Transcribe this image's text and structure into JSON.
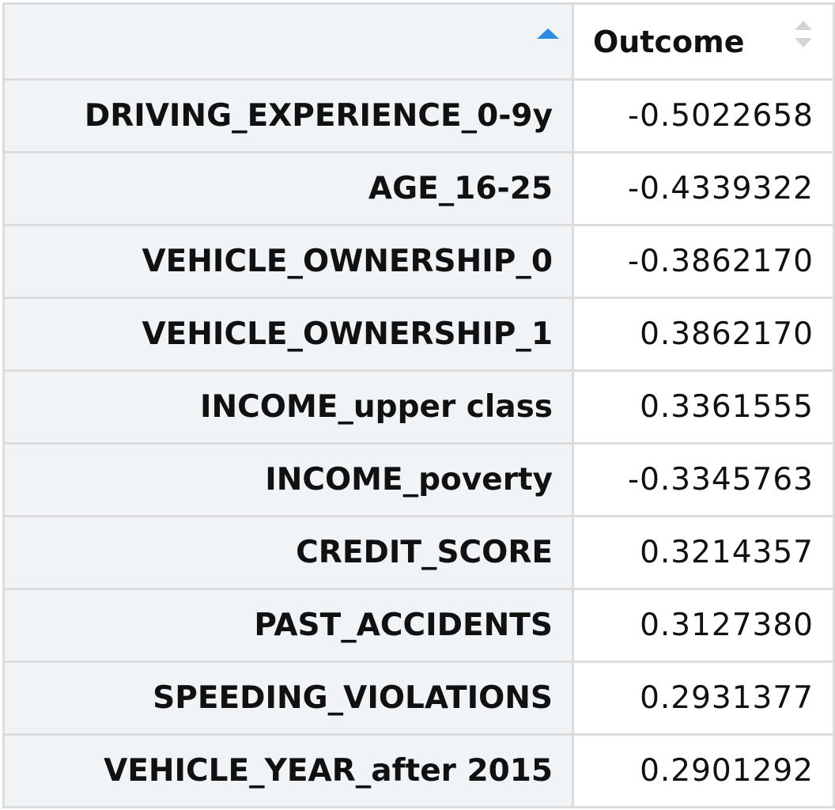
{
  "table": {
    "headers": {
      "rowname": "",
      "outcome": "Outcome"
    },
    "sort_indicator_color": "#2e8ae0",
    "rows": [
      {
        "name": "DRIVING_EXPERIENCE_0-9y",
        "value": "-0.5022658"
      },
      {
        "name": "AGE_16-25",
        "value": "-0.4339322"
      },
      {
        "name": "VEHICLE_OWNERSHIP_0",
        "value": "-0.3862170"
      },
      {
        "name": "VEHICLE_OWNERSHIP_1",
        "value": "0.3862170"
      },
      {
        "name": "INCOME_upper class",
        "value": "0.3361555"
      },
      {
        "name": "INCOME_poverty",
        "value": "-0.3345763"
      },
      {
        "name": "CREDIT_SCORE",
        "value": "0.3214357"
      },
      {
        "name": "PAST_ACCIDENTS",
        "value": "0.3127380"
      },
      {
        "name": "SPEEDING_VIOLATIONS",
        "value": "0.2931377"
      },
      {
        "name": "VEHICLE_YEAR_after 2015",
        "value": "0.2901292"
      }
    ]
  }
}
